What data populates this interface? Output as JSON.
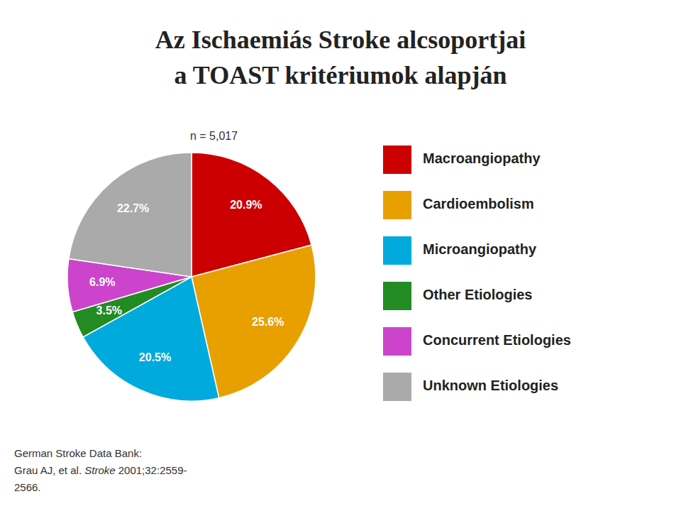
{
  "chart_data": {
    "type": "pie",
    "title": [
      "Az Ischaemiás Stroke alcsoportjai",
      "a TOAST kritériumok alapján"
    ],
    "annotations": [
      "n = 5,017"
    ],
    "footnote": [
      "German Stroke Data Bank:",
      "Grau AJ, et al. ",
      "Stroke",
      " 2001;32:2559-",
      "2566."
    ],
    "categories": [
      "Macroangiopathy",
      "Cardioembolism",
      "Microangiopathy",
      "Other Etiologies",
      "Concurrent Etiologies",
      "Unknown Etiologies"
    ],
    "values": [
      20.9,
      25.6,
      20.5,
      3.5,
      6.9,
      22.7
    ],
    "value_labels": [
      "20.9%",
      "25.6%",
      "20.5%",
      "3.5%",
      "6.9%",
      "22.7%"
    ],
    "colors": [
      "#cc0000",
      "#e8a000",
      "#00aadd",
      "#228b22",
      "#cc44cc",
      "#aaaaaa"
    ],
    "data_labels": true,
    "legend": "right"
  }
}
